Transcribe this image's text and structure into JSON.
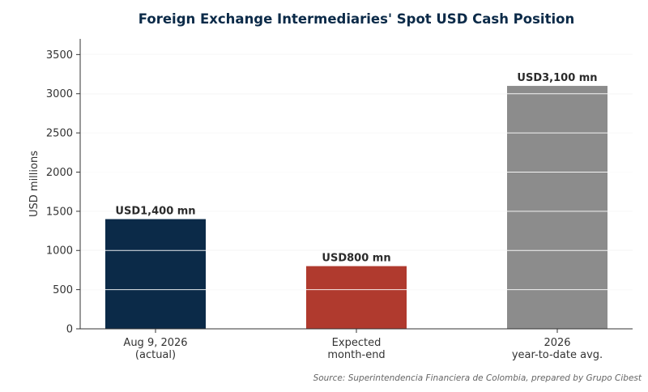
{
  "chart_data": {
    "type": "bar",
    "title": "Foreign Exchange Intermediaries' Spot USD Cash Position",
    "ylabel": "USD millions",
    "xlabel": "",
    "categories": [
      [
        "Aug 9, 2026",
        "(actual)"
      ],
      [
        "Expected",
        "month-end"
      ],
      [
        "2026",
        "year-to-date avg."
      ]
    ],
    "values": [
      1400,
      800,
      3100
    ],
    "data_labels": [
      "USD1,400 mn",
      "USD800 mn",
      "USD3,100 mn"
    ],
    "colors": [
      "#0b2a48",
      "#b03a2e",
      "#8c8c8c"
    ],
    "ylim": [
      0,
      3700
    ],
    "yticks": [
      0,
      500,
      1000,
      1500,
      2000,
      2500,
      3000,
      3500
    ],
    "grid": true,
    "legend": "none"
  },
  "source": "Source: Superintendencia Financiera de Colombia, prepared by Grupo Cibest"
}
